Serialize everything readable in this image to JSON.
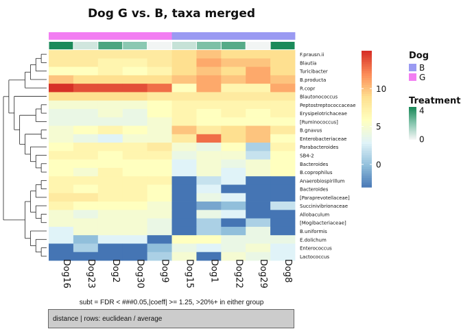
{
  "chart_data": {
    "type": "heatmap",
    "title": "Dog G vs. B, taxa merged",
    "subtitle": "subt = FDR < ###0.05,|coeff| >= 1.25, >20%+ in either group",
    "caption": "distance | rows: euclidean / average",
    "columns": [
      "Dog16",
      "Dog23",
      "Dog2",
      "Dog30",
      "Dog9",
      "Dog15",
      "Dog1",
      "Dog22",
      "Dog29",
      "Dog8"
    ],
    "rows": [
      "F.prausn.ii",
      "Blautia",
      "Turicibacter",
      "B.producta",
      "R.copr",
      "Blautonococcus",
      "Peptostreptococcaceae",
      "Erysipelotrichaceae",
      "[Ruminococcus]",
      "B.gnavus",
      "Enterobacteriaceae",
      "Parabacteroides",
      "SB4-2",
      "Bacteroides",
      "B.coprophilus",
      "Anaerobiospirillum",
      "Bacteroides",
      "[Paraprevotellaceae]",
      "Succinivibrionaceae",
      "Allobaculum",
      "[Mogibacteriaceae]",
      "B.uniformis",
      "E.dolichum",
      "Enterococcus",
      "Lactococcus"
    ],
    "values": [
      [
        8,
        8,
        8,
        8,
        8,
        9,
        10,
        9,
        9,
        9
      ],
      [
        8,
        8,
        7,
        7,
        8,
        9,
        11,
        10,
        10,
        9
      ],
      [
        6,
        6,
        7,
        6,
        7,
        9,
        10,
        9,
        11,
        9
      ],
      [
        10,
        9,
        9,
        9,
        9,
        10,
        11,
        10,
        11,
        10
      ],
      [
        15,
        14,
        14,
        14,
        13,
        6,
        11,
        7,
        7,
        11
      ],
      [
        9,
        9,
        9,
        9,
        8,
        8,
        8,
        8,
        8,
        8
      ],
      [
        5,
        5,
        5,
        5,
        6,
        7,
        7,
        7,
        7,
        7
      ],
      [
        4,
        4,
        5,
        4,
        6,
        7,
        6,
        7,
        6,
        7
      ],
      [
        4,
        4,
        4,
        4,
        5,
        7,
        6,
        6,
        6,
        6
      ],
      [
        5,
        6,
        7,
        6,
        5,
        10,
        8,
        9,
        10,
        8
      ],
      [
        5,
        4,
        3,
        5,
        5,
        8,
        13,
        9,
        10,
        6
      ],
      [
        6,
        7,
        7,
        7,
        8,
        5,
        4,
        6,
        1,
        7
      ],
      [
        7,
        7,
        6,
        7,
        7,
        4,
        5,
        5,
        2,
        6
      ],
      [
        6,
        6,
        6,
        6,
        6,
        3,
        5,
        4,
        5,
        6
      ],
      [
        6,
        5,
        7,
        6,
        6,
        3,
        5,
        3,
        5,
        6
      ],
      [
        7,
        7,
        7,
        7,
        7,
        -3,
        2,
        3,
        -3,
        -3
      ],
      [
        7,
        6,
        7,
        7,
        6,
        -3,
        3,
        -3,
        -3,
        -3
      ],
      [
        8,
        8,
        7,
        7,
        6,
        -3,
        4,
        3,
        -3,
        -3
      ],
      [
        7,
        6,
        6,
        6,
        5,
        -3,
        -1,
        0,
        -3,
        2
      ],
      [
        5,
        4,
        5,
        5,
        5,
        -3,
        4,
        3,
        -3,
        -3
      ],
      [
        5,
        5,
        5,
        5,
        4,
        -3,
        1,
        -3,
        1,
        -3
      ],
      [
        3,
        5,
        5,
        5,
        4,
        -3,
        1,
        0,
        4,
        -3
      ],
      [
        3,
        0,
        3,
        3,
        -3,
        6,
        6,
        4,
        4,
        4
      ],
      [
        -3,
        1,
        -3,
        -3,
        0,
        4,
        3,
        4,
        5,
        3
      ],
      [
        -3,
        -3,
        -3,
        -3,
        1,
        5,
        -3,
        5,
        4,
        3
      ]
    ],
    "annotation_dog": [
      "G",
      "G",
      "G",
      "G",
      "G",
      "B",
      "B",
      "B",
      "B",
      "B"
    ],
    "annotation_treatment": [
      4.5,
      0.8,
      3.5,
      2.2,
      0.1,
      1.0,
      2.5,
      3.3,
      0.1,
      4.5
    ],
    "colorbar": {
      "ticks": [
        0,
        5,
        10
      ],
      "range": [
        -3,
        15
      ]
    },
    "legend_dog": {
      "title": "Dog",
      "items": [
        {
          "label": "B",
          "color": "#9a9af2"
        },
        {
          "label": "G",
          "color": "#f27ef2"
        }
      ]
    },
    "legend_treatment": {
      "title": "Treatment",
      "ticks": [
        4,
        0
      ],
      "range": [
        0,
        4.5
      ]
    },
    "palette": [
      "#4575b4",
      "#91bfdb",
      "#e0f3f8",
      "#ffffbf",
      "#fee090",
      "#fc8d59",
      "#d73027"
    ]
  }
}
